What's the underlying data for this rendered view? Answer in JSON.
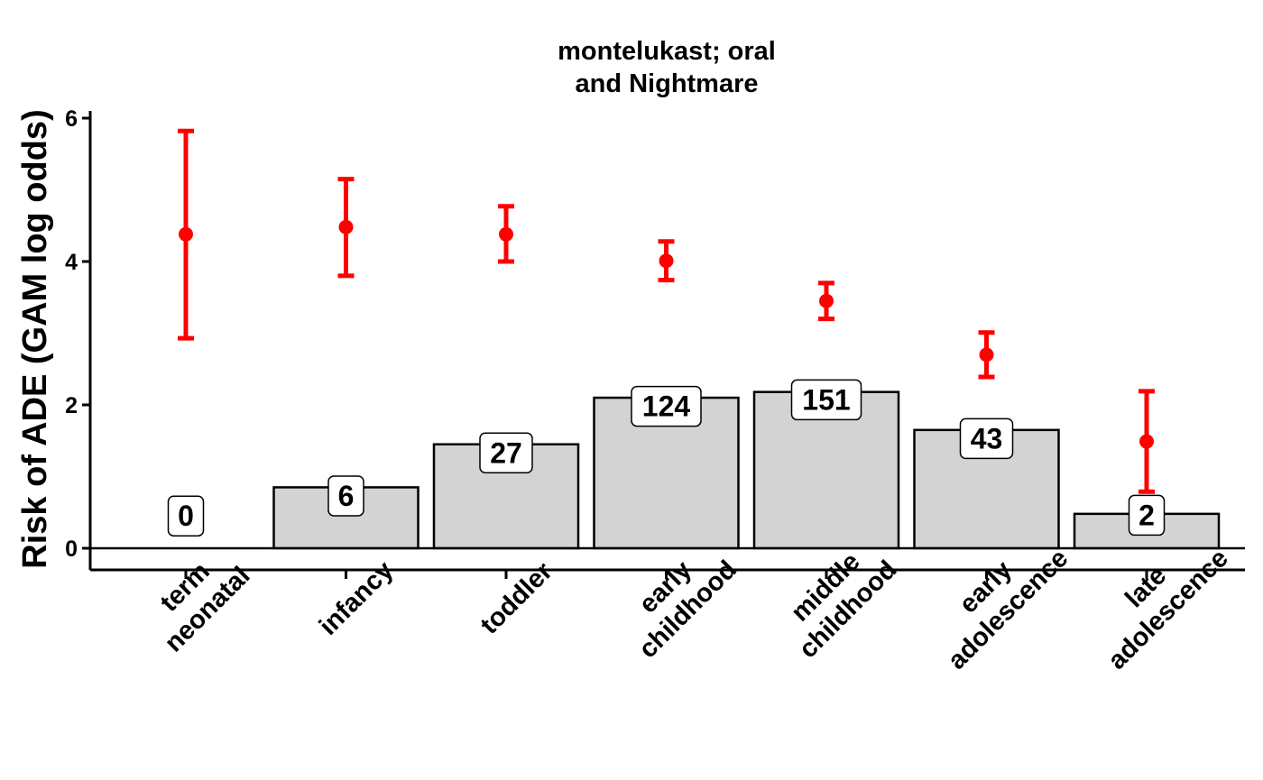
{
  "chart_data": {
    "type": "bar",
    "title_lines": [
      "montelukast; oral",
      "and Nightmare"
    ],
    "ylabel": "Risk of ADE (GAM log odds)",
    "xlabel": "",
    "ylim": [
      -0.3,
      6.1
    ],
    "yticks": [
      0,
      2,
      4,
      6
    ],
    "categories": [
      {
        "lines": [
          "term",
          "neonatal"
        ]
      },
      {
        "lines": [
          "infancy"
        ]
      },
      {
        "lines": [
          "toddler"
        ]
      },
      {
        "lines": [
          "early",
          "childhood"
        ]
      },
      {
        "lines": [
          "middle",
          "childhood"
        ]
      },
      {
        "lines": [
          "early",
          "adolescence"
        ]
      },
      {
        "lines": [
          "late",
          "adolescence"
        ]
      }
    ],
    "bars": {
      "values": [
        0,
        0.85,
        1.45,
        2.1,
        2.18,
        1.65,
        0.48
      ],
      "counts": [
        "0",
        "6",
        "27",
        "124",
        "151",
        "43",
        "2"
      ],
      "label_y": [
        0.45,
        0.73,
        1.33,
        1.98,
        2.07,
        1.53,
        0.46
      ],
      "fill": "#d3d3d3"
    },
    "estimates": {
      "mean": [
        4.38,
        4.48,
        4.38,
        4.01,
        3.45,
        2.7,
        1.49
      ],
      "lower": [
        2.93,
        3.8,
        4.0,
        3.74,
        3.2,
        2.39,
        0.79
      ],
      "upper": [
        5.82,
        5.15,
        4.77,
        4.28,
        3.7,
        3.01,
        2.19
      ],
      "color": "#ff0000"
    },
    "hline": 0,
    "grid": false,
    "legend": "none"
  }
}
